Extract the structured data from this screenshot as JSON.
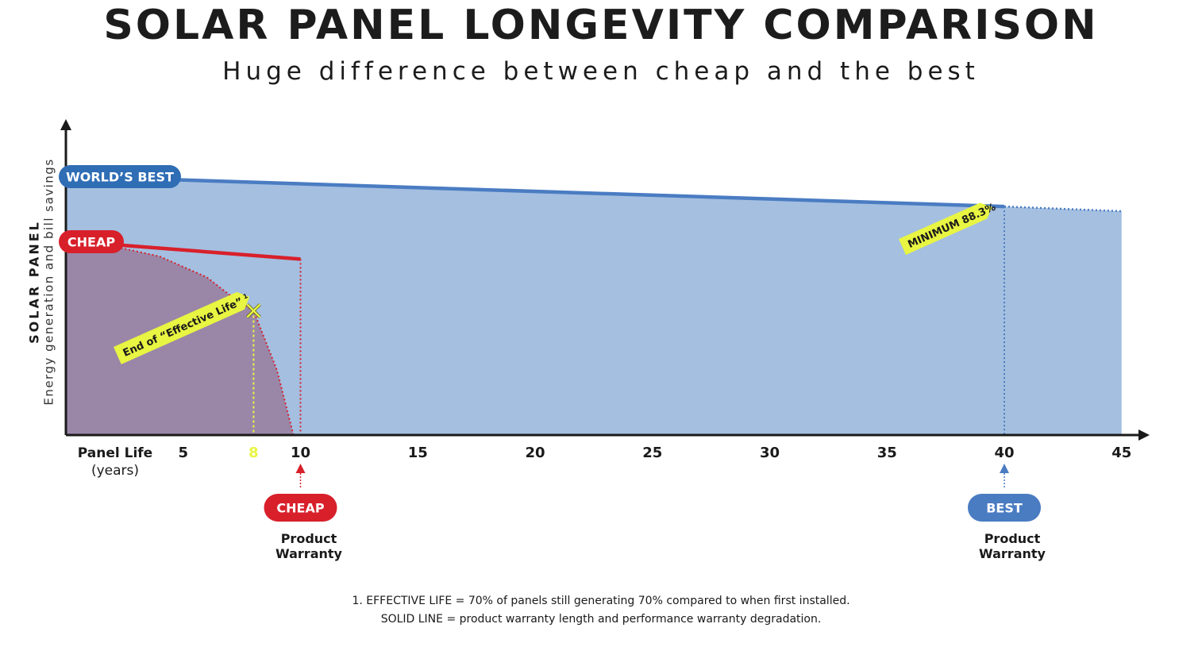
{
  "title": "SOLAR PANEL LONGEVITY COMPARISON",
  "subtitle": "Huge difference between cheap and the best",
  "ylabel": {
    "line1": "SOLAR PANEL",
    "line2": "Energy generation and bill savings"
  },
  "xlabel": {
    "line1": "Panel Life",
    "line2": "(years)"
  },
  "colors": {
    "best_area": "#a4bfe0",
    "best_line": "#4a7cc2",
    "cheap_area": "#9a87a8",
    "cheap_line": "#d8202b",
    "highlight": "#e8f542",
    "axis": "#1a1a1a"
  },
  "chart_data": {
    "type": "area",
    "xlim": [
      0,
      45
    ],
    "ylim": [
      0,
      100
    ],
    "x_ticks": [
      5,
      8,
      10,
      15,
      20,
      25,
      30,
      35,
      40,
      45
    ],
    "highlighted_tick": 8,
    "series": [
      {
        "name": "WORLD'S BEST",
        "warranty_line": [
          [
            0,
            100
          ],
          [
            40,
            88.3
          ]
        ],
        "projection": [
          [
            40,
            88.3
          ],
          [
            45,
            86.5
          ]
        ],
        "warranty_years": 40
      },
      {
        "name": "CHEAP",
        "warranty_line": [
          [
            0,
            75
          ],
          [
            10,
            68
          ]
        ],
        "effective_curve": [
          [
            0,
            75
          ],
          [
            2,
            73
          ],
          [
            4,
            69
          ],
          [
            6,
            61
          ],
          [
            7,
            54
          ],
          [
            8,
            48
          ],
          [
            9,
            25
          ],
          [
            9.7,
            0
          ]
        ],
        "warranty_years": 10,
        "effective_life_end": [
          8,
          48
        ]
      }
    ],
    "annotations": {
      "minimum": "MINIMUM 88.3%",
      "effective_life": "End of “Effective Life”",
      "effective_life_sup": "1",
      "best_label": "WORLD’S BEST",
      "cheap_label": "CHEAP"
    },
    "markers": [
      {
        "label": "CHEAP",
        "sub1": "Product",
        "sub2": "Warranty",
        "x": 10
      },
      {
        "label": "BEST",
        "sub1": "Product",
        "sub2": "Warranty",
        "x": 40
      }
    ]
  },
  "footnotes": [
    "1. EFFECTIVE LIFE = 70% of panels still generating 70% compared to when first installed.",
    "SOLID LINE = product warranty length and performance warranty degradation."
  ]
}
